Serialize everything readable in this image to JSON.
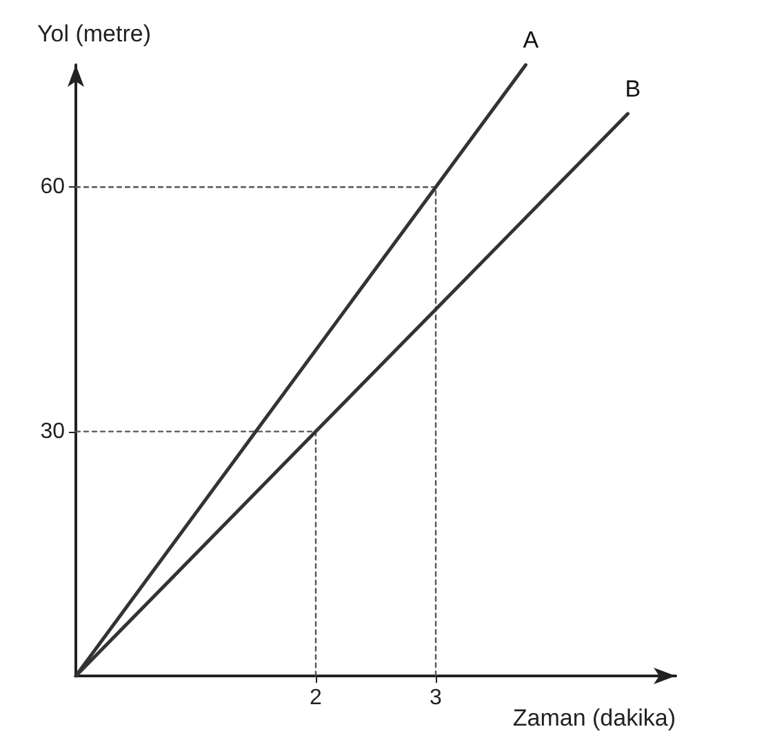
{
  "chart_data": {
    "type": "line",
    "xlabel": "Zaman (dakika)",
    "ylabel": "Yol (metre)",
    "xlim": [
      0,
      5
    ],
    "ylim": [
      0,
      75
    ],
    "xticks": [
      2,
      3
    ],
    "yticks": [
      30,
      60
    ],
    "grid": false,
    "legend": false,
    "marker": "none",
    "series": [
      {
        "name": "A",
        "color": "#333333",
        "x": [
          0,
          3,
          3.75
        ],
        "values": [
          0,
          60,
          75
        ]
      },
      {
        "name": "B",
        "color": "#333333",
        "x": [
          0,
          2,
          3,
          4.6
        ],
        "values": [
          0,
          30,
          45,
          69
        ]
      },
      {
        "color": "#555555",
        "x": [
          0,
          3,
          3
        ],
        "values": [
          60,
          60,
          0
        ],
        "line_style": "dotted"
      },
      {
        "color": "#555555",
        "x": [
          0,
          2,
          2
        ],
        "values": [
          30,
          30,
          0
        ],
        "line_style": "dotted"
      }
    ]
  }
}
